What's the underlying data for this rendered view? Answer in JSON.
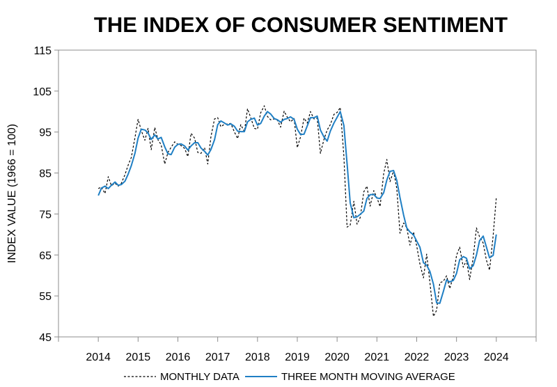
{
  "chart_data": {
    "type": "line",
    "title": "THE INDEX OF CONSUMER SENTIMENT",
    "xlabel": "",
    "ylabel": "INDEX VALUE (1966 = 100)",
    "ylim": [
      45,
      115
    ],
    "yticks": [
      "45",
      "55",
      "65",
      "75",
      "85",
      "95",
      "105",
      "115"
    ],
    "xlim": [
      2013,
      2025
    ],
    "xticks": [
      "2014",
      "2015",
      "2016",
      "2017",
      "2018",
      "2019",
      "2020",
      "2021",
      "2022",
      "2023",
      "2024"
    ],
    "grid": false,
    "legend_position": "bottom",
    "colors": {
      "monthly": "#000000",
      "moving_average": "#1f7fc4",
      "axis": "#8c8c8c"
    },
    "series": [
      {
        "name": "MONTHLY DATA",
        "style": "dashed",
        "x": [
          2014.0,
          2014.08,
          2014.17,
          2014.25,
          2014.33,
          2014.42,
          2014.5,
          2014.58,
          2014.67,
          2014.75,
          2014.83,
          2014.92,
          2015.0,
          2015.08,
          2015.17,
          2015.25,
          2015.33,
          2015.42,
          2015.5,
          2015.58,
          2015.67,
          2015.75,
          2015.83,
          2015.92,
          2016.0,
          2016.08,
          2016.17,
          2016.25,
          2016.33,
          2016.42,
          2016.5,
          2016.58,
          2016.67,
          2016.75,
          2016.83,
          2016.92,
          2017.0,
          2017.08,
          2017.17,
          2017.25,
          2017.33,
          2017.42,
          2017.5,
          2017.58,
          2017.67,
          2017.75,
          2017.83,
          2017.92,
          2018.0,
          2018.08,
          2018.17,
          2018.25,
          2018.33,
          2018.42,
          2018.5,
          2018.58,
          2018.67,
          2018.75,
          2018.83,
          2018.92,
          2019.0,
          2019.08,
          2019.17,
          2019.25,
          2019.33,
          2019.42,
          2019.5,
          2019.58,
          2019.67,
          2019.75,
          2019.83,
          2019.92,
          2020.0,
          2020.08,
          2020.17,
          2020.25,
          2020.33,
          2020.42,
          2020.5,
          2020.58,
          2020.67,
          2020.75,
          2020.83,
          2020.92,
          2021.0,
          2021.08,
          2021.17,
          2021.25,
          2021.33,
          2021.42,
          2021.5,
          2021.58,
          2021.67,
          2021.75,
          2021.83,
          2021.92,
          2022.0,
          2022.08,
          2022.17,
          2022.25,
          2022.33,
          2022.42,
          2022.5,
          2022.58,
          2022.67,
          2022.75,
          2022.83,
          2022.92,
          2023.0,
          2023.08,
          2023.17,
          2023.25,
          2023.33,
          2023.42,
          2023.5,
          2023.58,
          2023.67,
          2023.75,
          2023.83,
          2023.92,
          2024.0
        ],
        "values": [
          81.2,
          81.6,
          80.0,
          84.1,
          81.9,
          82.5,
          81.8,
          82.5,
          84.6,
          86.9,
          88.8,
          93.6,
          98.1,
          95.4,
          93.0,
          95.9,
          90.7,
          96.1,
          93.1,
          91.9,
          87.2,
          90.0,
          91.3,
          92.6,
          92.0,
          91.7,
          91.0,
          89.0,
          94.7,
          93.5,
          90.0,
          89.8,
          91.2,
          87.2,
          93.8,
          98.2,
          98.5,
          96.3,
          96.9,
          97.0,
          97.1,
          95.0,
          93.4,
          96.8,
          95.1,
          100.7,
          98.5,
          95.9,
          95.7,
          99.7,
          101.4,
          98.8,
          98.0,
          98.2,
          97.9,
          96.2,
          100.1,
          98.6,
          97.5,
          98.3,
          91.2,
          93.8,
          98.4,
          97.2,
          100.0,
          98.2,
          98.4,
          89.8,
          93.2,
          95.5,
          96.8,
          99.3,
          99.8,
          101.0,
          89.1,
          71.8,
          72.3,
          78.1,
          72.5,
          74.1,
          80.4,
          81.8,
          76.9,
          80.7,
          79.0,
          76.8,
          84.9,
          88.3,
          82.9,
          85.5,
          81.2,
          70.3,
          72.8,
          71.7,
          67.4,
          70.6,
          67.2,
          62.8,
          59.4,
          65.2,
          58.4,
          50.0,
          51.5,
          58.2,
          58.6,
          59.9,
          56.8,
          59.7,
          64.9,
          66.9,
          62.0,
          63.7,
          59.0,
          64.4,
          71.6,
          69.4,
          67.9,
          63.8,
          61.3,
          69.7,
          79.0
        ]
      },
      {
        "name": "THREE MONTH MOVING AVERAGE",
        "style": "solid",
        "x": [
          2014.0,
          2014.08,
          2014.17,
          2014.25,
          2014.33,
          2014.42,
          2014.5,
          2014.58,
          2014.67,
          2014.75,
          2014.83,
          2014.92,
          2015.0,
          2015.08,
          2015.17,
          2015.25,
          2015.33,
          2015.42,
          2015.5,
          2015.58,
          2015.67,
          2015.75,
          2015.83,
          2015.92,
          2016.0,
          2016.08,
          2016.17,
          2016.25,
          2016.33,
          2016.42,
          2016.5,
          2016.58,
          2016.67,
          2016.75,
          2016.83,
          2016.92,
          2017.0,
          2017.08,
          2017.17,
          2017.25,
          2017.33,
          2017.42,
          2017.5,
          2017.58,
          2017.67,
          2017.75,
          2017.83,
          2017.92,
          2018.0,
          2018.08,
          2018.17,
          2018.25,
          2018.33,
          2018.42,
          2018.5,
          2018.58,
          2018.67,
          2018.75,
          2018.83,
          2018.92,
          2019.0,
          2019.08,
          2019.17,
          2019.25,
          2019.33,
          2019.42,
          2019.5,
          2019.58,
          2019.67,
          2019.75,
          2019.83,
          2019.92,
          2020.0,
          2020.08,
          2020.17,
          2020.25,
          2020.33,
          2020.42,
          2020.5,
          2020.58,
          2020.67,
          2020.75,
          2020.83,
          2020.92,
          2021.0,
          2021.08,
          2021.17,
          2021.25,
          2021.33,
          2021.42,
          2021.5,
          2021.58,
          2021.67,
          2021.75,
          2021.83,
          2021.92,
          2022.0,
          2022.08,
          2022.17,
          2022.25,
          2022.33,
          2022.42,
          2022.5,
          2022.58,
          2022.67,
          2022.75,
          2022.83,
          2022.92,
          2023.0,
          2023.08,
          2023.17,
          2023.25,
          2023.33,
          2023.42,
          2023.5,
          2023.58,
          2023.67,
          2023.75,
          2023.83,
          2023.92,
          2024.0
        ],
        "values": [
          79.5,
          81.3,
          81.8,
          81.2,
          82.0,
          82.8,
          82.0,
          82.2,
          83.0,
          84.7,
          86.8,
          89.8,
          93.5,
          95.7,
          95.5,
          94.8,
          93.2,
          94.3,
          93.3,
          93.7,
          91.4,
          89.7,
          89.5,
          91.3,
          92.0,
          92.1,
          91.6,
          90.6,
          91.6,
          92.4,
          92.4,
          91.1,
          90.3,
          89.4,
          90.7,
          93.1,
          96.8,
          97.7,
          97.2,
          96.7,
          97.0,
          96.4,
          95.2,
          95.1,
          95.1,
          97.5,
          98.1,
          98.4,
          96.7,
          97.1,
          98.9,
          100.0,
          99.4,
          98.3,
          98.0,
          97.4,
          98.1,
          98.3,
          98.7,
          98.1,
          95.7,
          94.4,
          94.5,
          96.5,
          98.5,
          98.5,
          98.9,
          95.5,
          93.8,
          92.8,
          95.2,
          97.2,
          98.6,
          100.0,
          96.6,
          87.3,
          77.7,
          74.1,
          74.3,
          74.9,
          75.7,
          78.8,
          79.7,
          79.8,
          78.9,
          78.8,
          80.2,
          83.3,
          85.4,
          85.6,
          83.2,
          79.0,
          74.8,
          71.6,
          70.6,
          69.9,
          68.4,
          66.9,
          63.1,
          62.5,
          61.0,
          57.9,
          53.3,
          53.2,
          56.1,
          58.9,
          58.4,
          58.8,
          60.5,
          63.8,
          64.6,
          64.2,
          61.6,
          62.4,
          65.0,
          68.5,
          69.6,
          67.0,
          64.3,
          64.9,
          70.0
        ]
      }
    ]
  }
}
